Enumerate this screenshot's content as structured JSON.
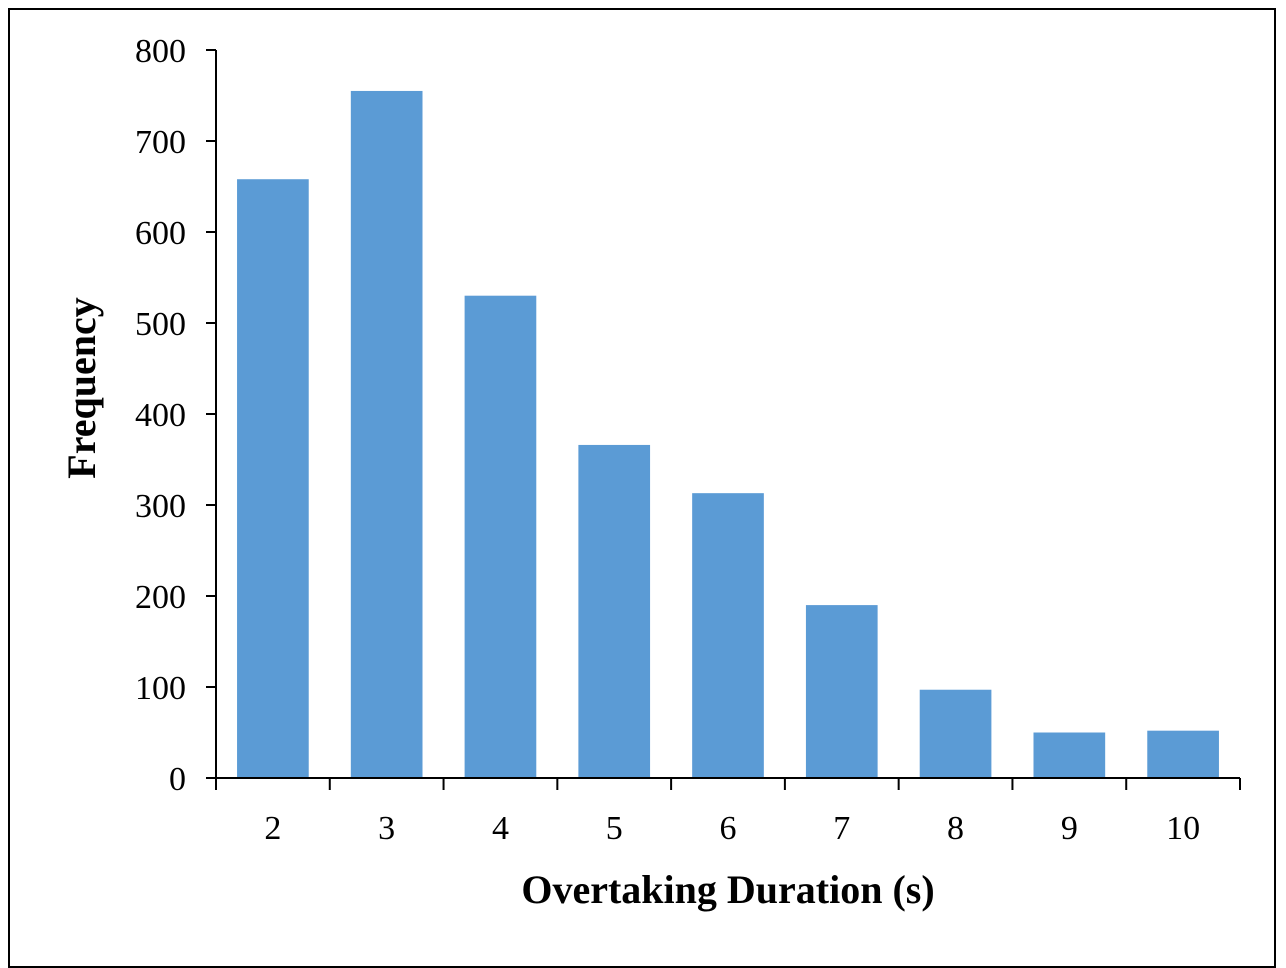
{
  "chart_data": {
    "type": "bar",
    "categories": [
      "2",
      "3",
      "4",
      "5",
      "6",
      "7",
      "8",
      "9",
      "10"
    ],
    "values": [
      658,
      755,
      530,
      366,
      313,
      190,
      97,
      50,
      52
    ],
    "xlabel": "Overtaking Duration (s)",
    "ylabel": "Frequency",
    "ylim": [
      0,
      800
    ],
    "yticks": [
      "0",
      "100",
      "200",
      "300",
      "400",
      "500",
      "600",
      "700",
      "800"
    ],
    "grid": false,
    "legend": "none",
    "bar_color": "#5B9BD5"
  }
}
